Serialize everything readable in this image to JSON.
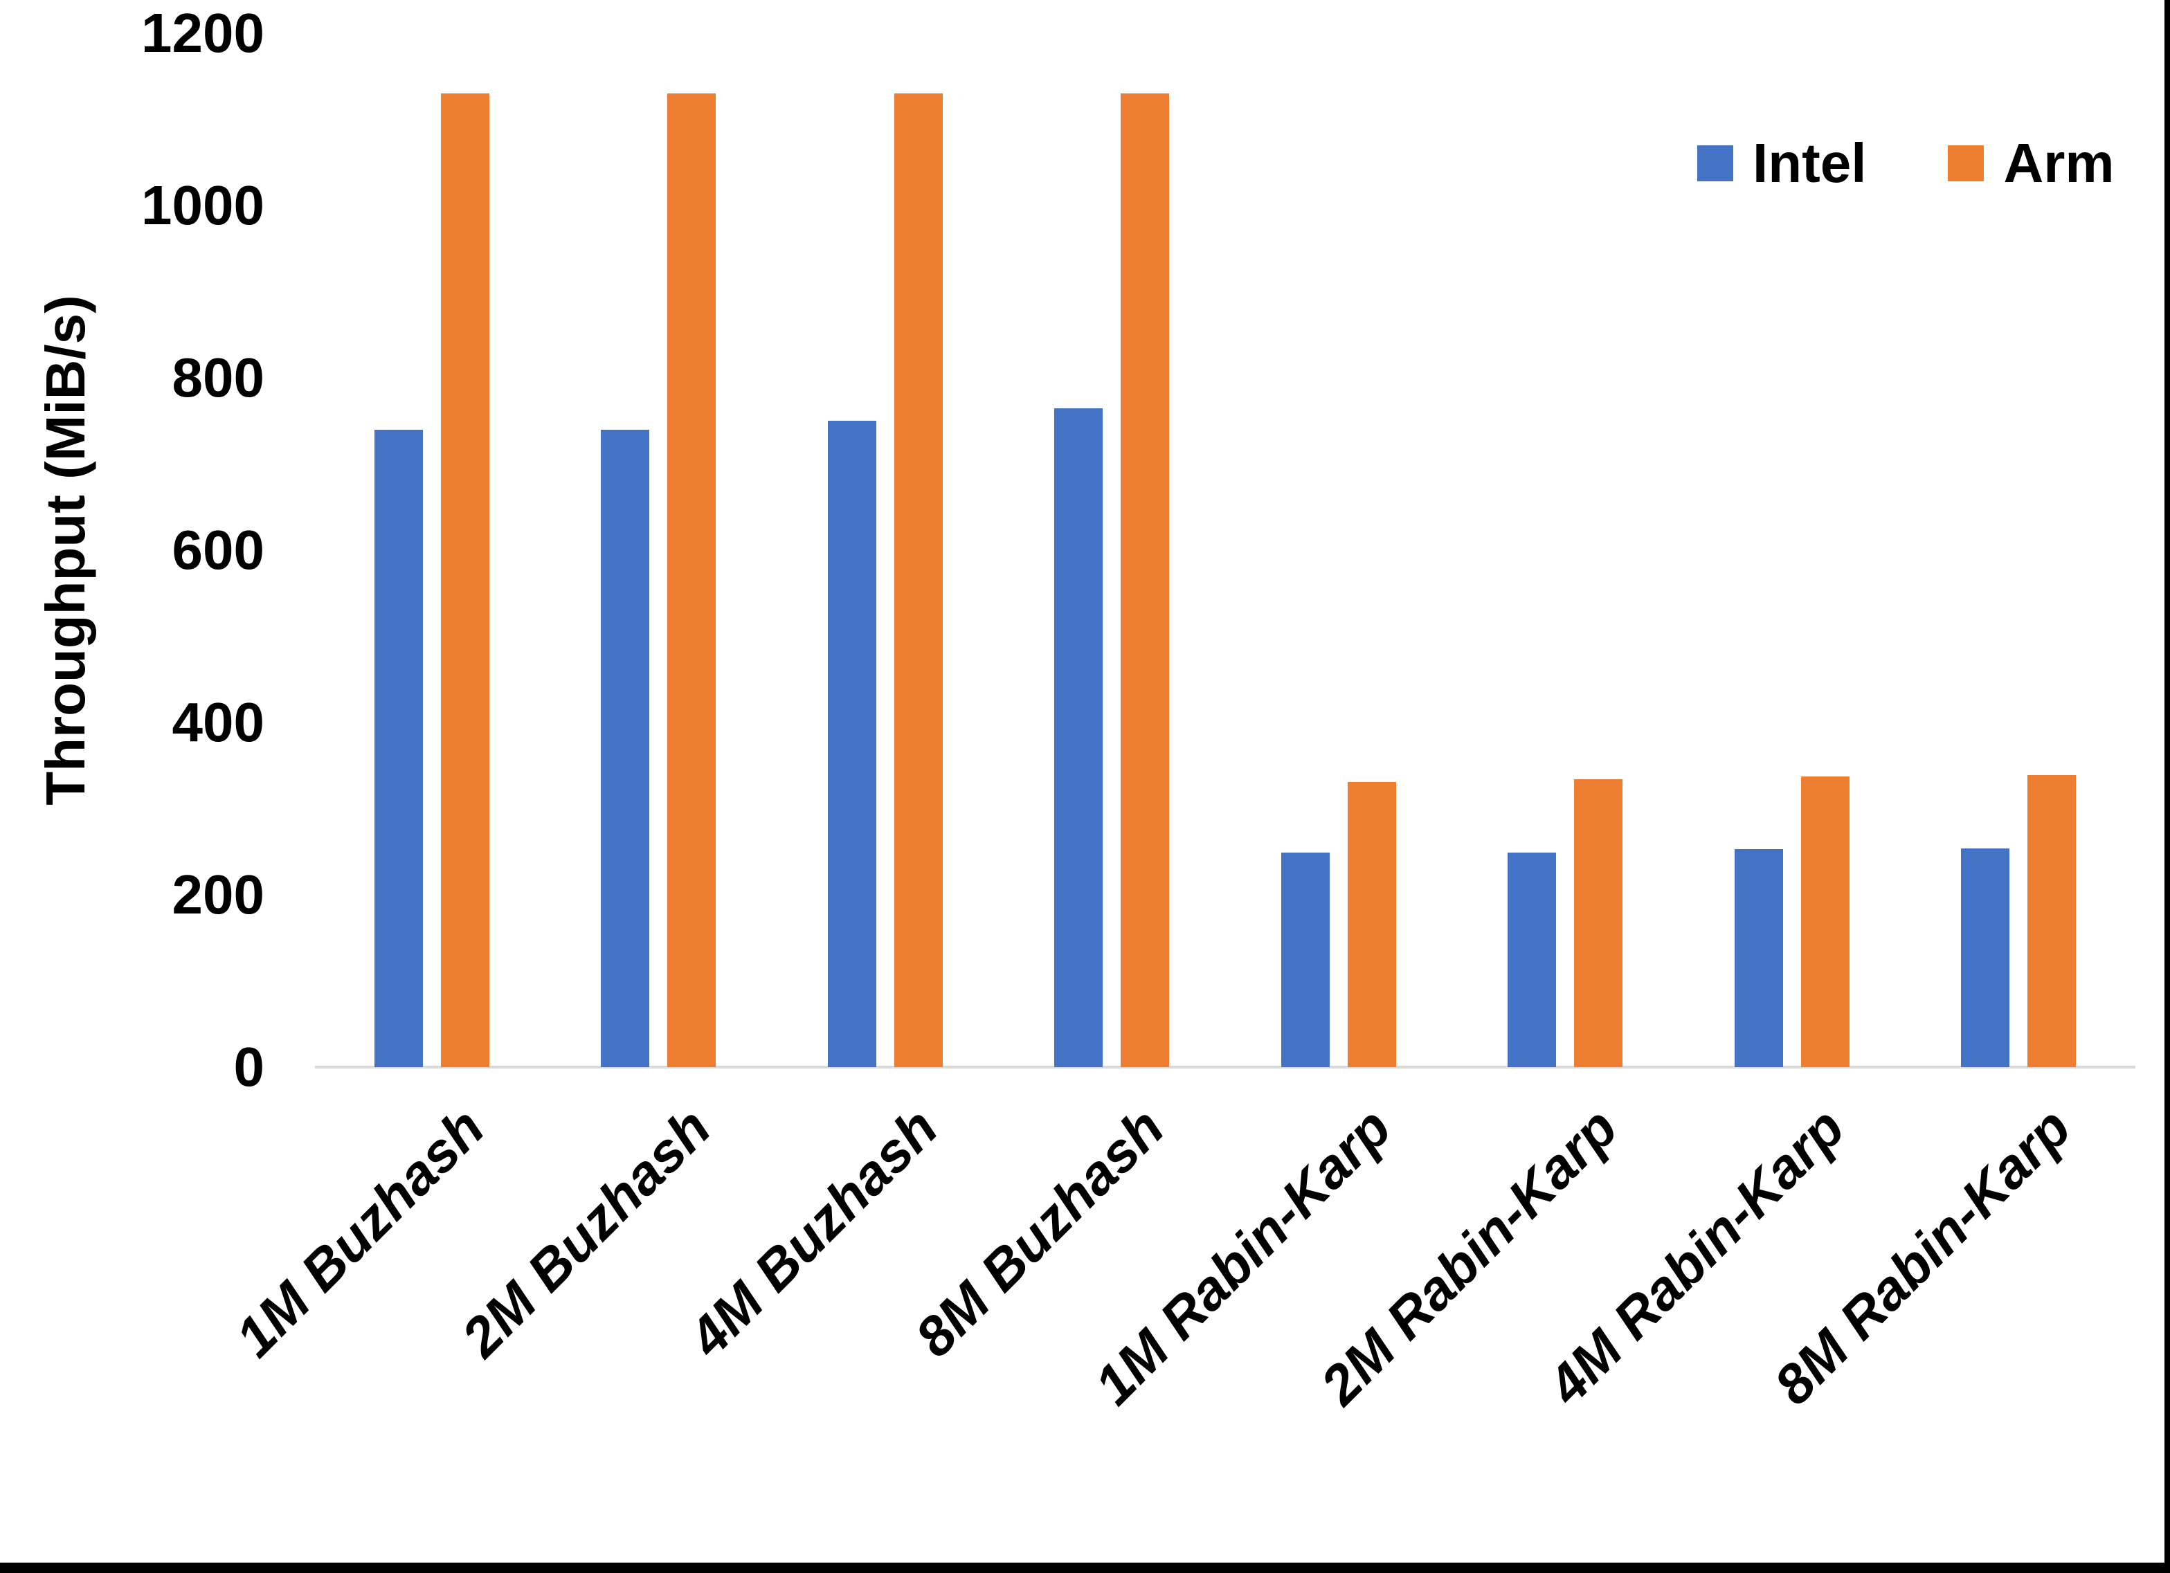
{
  "chart_data": {
    "type": "bar",
    "title": "",
    "xlabel": "",
    "ylabel": "Throughput (MiB/s)",
    "ylim": [
      0,
      1200
    ],
    "y_ticks": [
      0,
      200,
      400,
      600,
      800,
      1000,
      1200
    ],
    "grid": "off",
    "legend_position": "top-right",
    "categories": [
      "1M Buzhash",
      "2M Buzhash",
      "4M Buzhash",
      "8M Buzhash",
      "1M Rabin-Karp",
      "2M Rabin-Karp",
      "4M Rabin-Karp",
      "8M Rabin-Karp"
    ],
    "series": [
      {
        "name": "Intel",
        "color": "#4472C4",
        "values": [
          740,
          740,
          750,
          765,
          249,
          249,
          253,
          254
        ]
      },
      {
        "name": "Arm",
        "color": "#ED7D31",
        "values": [
          1130,
          1130,
          1130,
          1130,
          331,
          334,
          337,
          339
        ]
      }
    ],
    "axis_line_color": "#d9d9d9",
    "text_color": "#000000"
  },
  "frame": {
    "background": "#ffffff",
    "border_color": "#000000"
  }
}
